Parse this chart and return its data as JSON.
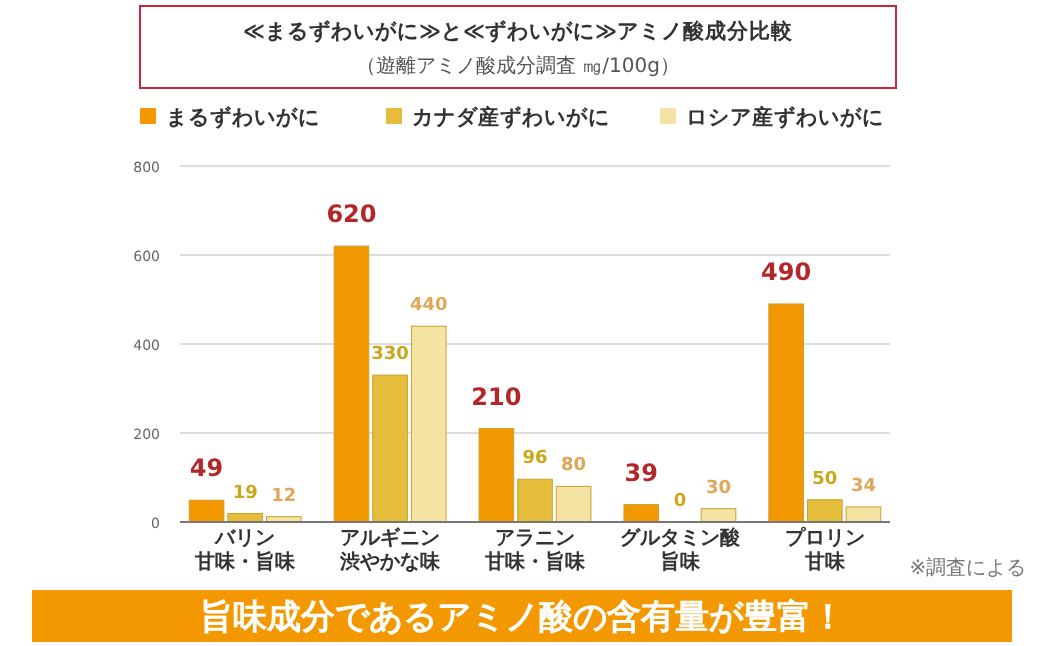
{
  "chart_data": {
    "type": "bar",
    "title": "≪まるずわいがに≫と≪ずわいがに≫アミノ酸成分比較",
    "subtitle": "（遊離アミノ酸成分調査 ㎎/100g）",
    "categories": [
      "バリン",
      "アルギニン",
      "アラニン",
      "グルタミン酸",
      "プロリン"
    ],
    "series": [
      {
        "name": "まるずわいがに",
        "color": "#f39800",
        "values": [
          49,
          620,
          210,
          39,
          490
        ]
      },
      {
        "name": "カナダ産ずわいがに",
        "color": "#e6bd3a",
        "values": [
          19,
          330,
          96,
          0,
          50
        ]
      },
      {
        "name": "ロシア産ずわいがに",
        "color": "#f5e3a3",
        "values": [
          12,
          440,
          80,
          30,
          34
        ]
      }
    ],
    "ylim": [
      0,
      800
    ],
    "yticks": [
      0,
      200,
      400,
      600,
      800
    ],
    "grid": "y",
    "legend": "top",
    "data_labels": true,
    "annotations": [
      "※調査による",
      "旨味成分であるアミノ酸の含有量が豊富！",
      "甘味・旨味",
      "渋やかな味",
      "甘味・旨味",
      "旨味",
      "甘味"
    ]
  }
}
